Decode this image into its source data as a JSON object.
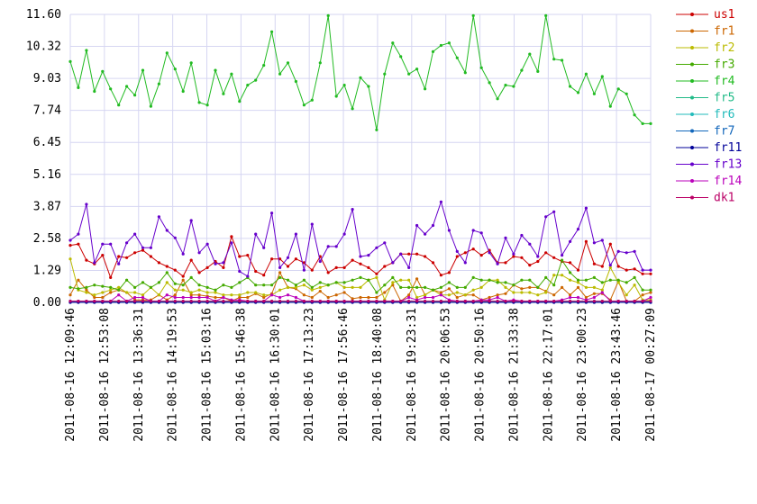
{
  "chart_data": {
    "type": "line",
    "title": "",
    "xlabel": "",
    "ylabel": "",
    "ylim": [
      0,
      11.6
    ],
    "y_ticks": [
      "0.00",
      "1.29",
      "2.58",
      "3.87",
      "5.16",
      "6.45",
      "7.74",
      "9.03",
      "10.32",
      "11.60"
    ],
    "x_tick_labels": [
      "2011-08-16 12:09:46",
      "2011-08-16 12:53:08",
      "2011-08-16 13:36:31",
      "2011-08-16 14:19:53",
      "2011-08-16 15:03:16",
      "2011-08-16 15:46:38",
      "2011-08-16 16:30:01",
      "2011-08-16 17:13:23",
      "2011-08-16 17:56:46",
      "2011-08-16 18:40:08",
      "2011-08-16 19:23:31",
      "2011-08-16 20:06:53",
      "2011-08-16 20:50:16",
      "2011-08-16 21:33:38",
      "2011-08-16 22:17:01",
      "2011-08-16 23:00:23",
      "2011-08-16 23:43:46",
      "2011-08-17 00:27:09"
    ],
    "grid": true,
    "legend_position": "right",
    "series": [
      {
        "name": "us1",
        "color": "#cc0000",
        "values": [
          2.3,
          2.35,
          1.7,
          1.55,
          1.9,
          1.0,
          1.85,
          1.8,
          2.0,
          2.1,
          1.85,
          1.6,
          1.45,
          1.3,
          1.05,
          1.7,
          1.2,
          1.4,
          1.65,
          1.4,
          2.65,
          1.85,
          1.9,
          1.25,
          1.1,
          1.75,
          1.75,
          1.45,
          1.75,
          1.6,
          1.3,
          1.85,
          1.2,
          1.4,
          1.4,
          1.7,
          1.55,
          1.4,
          1.15,
          1.45,
          1.6,
          1.95,
          1.95,
          1.95,
          1.85,
          1.6,
          1.1,
          1.2,
          1.85,
          2.0,
          2.15,
          1.9,
          2.1,
          1.6,
          1.6,
          1.85,
          1.8,
          1.5,
          1.65,
          2.0,
          1.8,
          1.65,
          1.6,
          1.3,
          2.45,
          1.55,
          1.45,
          2.35,
          1.45,
          1.3,
          1.35,
          1.15,
          1.15
        ]
      },
      {
        "name": "fr1",
        "color": "#cc6600",
        "values": [
          0.3,
          0.9,
          0.5,
          0.2,
          0.2,
          0.4,
          0.5,
          0.4,
          0.1,
          0.1,
          0.1,
          0.3,
          0.1,
          0.3,
          0.9,
          0.3,
          0.3,
          0.25,
          0.2,
          0.2,
          0.05,
          0.2,
          0.2,
          0.35,
          0.2,
          0.35,
          1.2,
          0.6,
          0.55,
          0.3,
          0.2,
          0.45,
          0.2,
          0.3,
          0.4,
          0.15,
          0.2,
          0.2,
          0.2,
          0.4,
          0.7,
          0.05,
          0.3,
          0.95,
          0.3,
          0.5,
          0.4,
          0.55,
          0.2,
          0.3,
          0.3,
          0.1,
          0.2,
          0.3,
          0.35,
          0.7,
          0.55,
          0.6,
          0.6,
          0.45,
          0.3,
          0.6,
          0.3,
          0.6,
          0.2,
          0.35,
          0.35,
          0.1,
          0.85,
          0.05,
          0.05,
          0.3,
          0.4
        ]
      },
      {
        "name": "fr2",
        "color": "#bbbb00",
        "values": [
          1.75,
          0.5,
          0.4,
          0.3,
          0.4,
          0.5,
          0.6,
          0.4,
          0.4,
          0.3,
          0.6,
          0.3,
          0.8,
          0.5,
          0.5,
          0.4,
          0.5,
          0.4,
          0.4,
          0.3,
          0.3,
          0.3,
          0.4,
          0.4,
          0.3,
          0.3,
          0.5,
          0.6,
          0.6,
          0.7,
          0.5,
          0.6,
          0.7,
          0.8,
          0.6,
          0.6,
          0.6,
          0.9,
          1.0,
          0.1,
          0.8,
          0.9,
          0.9,
          0.2,
          0.3,
          0.5,
          0.3,
          0.3,
          0.4,
          0.3,
          0.5,
          0.6,
          0.9,
          0.9,
          0.6,
          0.4,
          0.4,
          0.4,
          0.3,
          0.4,
          1.1,
          1.1,
          0.9,
          0.8,
          0.6,
          0.6,
          0.5,
          1.4,
          0.8,
          0.3,
          0.7,
          0.1,
          0.1
        ]
      },
      {
        "name": "fr3",
        "color": "#44aa00",
        "values": [
          0.6,
          0.55,
          0.6,
          0.7,
          0.65,
          0.6,
          0.5,
          0.9,
          0.6,
          0.8,
          0.6,
          0.8,
          1.2,
          0.75,
          0.7,
          1.0,
          0.7,
          0.6,
          0.5,
          0.7,
          0.6,
          0.8,
          1.0,
          0.7,
          0.7,
          0.7,
          1.0,
          0.9,
          0.7,
          0.9,
          0.6,
          0.8,
          0.7,
          0.8,
          0.8,
          0.9,
          1.0,
          0.9,
          0.4,
          0.7,
          1.0,
          0.6,
          0.6,
          0.6,
          0.6,
          0.5,
          0.6,
          0.8,
          0.6,
          0.6,
          1.0,
          0.9,
          0.9,
          0.8,
          0.8,
          0.7,
          0.9,
          0.9,
          0.6,
          1.0,
          0.7,
          1.7,
          1.2,
          0.9,
          0.9,
          1.0,
          0.8,
          0.9,
          0.9,
          0.8,
          1.0,
          0.5,
          0.5
        ]
      },
      {
        "name": "fr4",
        "color": "#22bb22",
        "values": [
          9.7,
          8.65,
          10.15,
          8.5,
          9.3,
          8.6,
          7.95,
          8.7,
          8.35,
          9.35,
          7.9,
          8.8,
          10.05,
          9.4,
          8.5,
          9.65,
          8.05,
          7.95,
          9.35,
          8.4,
          9.2,
          8.1,
          8.75,
          8.95,
          9.55,
          10.9,
          9.2,
          9.65,
          8.9,
          7.95,
          8.15,
          9.65,
          11.55,
          8.3,
          8.75,
          7.8,
          9.05,
          8.7,
          6.95,
          9.2,
          10.45,
          9.9,
          9.2,
          9.4,
          8.6,
          10.1,
          10.35,
          10.45,
          9.85,
          9.25,
          11.55,
          9.45,
          8.85,
          8.2,
          8.75,
          8.7,
          9.35,
          10.0,
          9.3,
          11.55,
          9.8,
          9.75,
          8.7,
          8.45,
          9.2,
          8.4,
          9.1,
          7.9,
          8.6,
          8.4,
          7.55,
          7.2,
          7.2
        ]
      },
      {
        "name": "fr5",
        "color": "#22bb88",
        "values": [
          0.05,
          0.05,
          0.05,
          0.05,
          0.05,
          0.05,
          0.05,
          0.05,
          0.05,
          0.05,
          0.05,
          0.05,
          0.05,
          0.05,
          0.05,
          0.05,
          0.05,
          0.05,
          0.05,
          0.05,
          0.05,
          0.05,
          0.05,
          0.05,
          0.05,
          0.05,
          0.05,
          0.05,
          0.05,
          0.05,
          0.05,
          0.05,
          0.05,
          0.05,
          0.05,
          0.05,
          0.05,
          0.05,
          0.05,
          0.05,
          0.05,
          0.05,
          0.05,
          0.05,
          0.05,
          0.05,
          0.05,
          0.05,
          0.05,
          0.05,
          0.05,
          0.05,
          0.05,
          0.05,
          0.05,
          0.05,
          0.05,
          0.05,
          0.05,
          0.05,
          0.05,
          0.05,
          0.05,
          0.05,
          0.05,
          0.05,
          0.05,
          0.05,
          0.05,
          0.05,
          0.05,
          0.05,
          0.05
        ]
      },
      {
        "name": "fr6",
        "color": "#22bbbb",
        "values": [
          0.02,
          0.02,
          0.02,
          0.02,
          0.02,
          0.02,
          0.02,
          0.02,
          0.02,
          0.02,
          0.02,
          0.02,
          0.02,
          0.02,
          0.02,
          0.02,
          0.02,
          0.02,
          0.02,
          0.02,
          0.02,
          0.02,
          0.02,
          0.02,
          0.02,
          0.02,
          0.02,
          0.02,
          0.02,
          0.02,
          0.02,
          0.02,
          0.02,
          0.02,
          0.02,
          0.02,
          0.02,
          0.02,
          0.02,
          0.02,
          0.02,
          0.02,
          0.02,
          0.02,
          0.02,
          0.02,
          0.02,
          0.02,
          0.02,
          0.02,
          0.02,
          0.02,
          0.02,
          0.02,
          0.02,
          0.02,
          0.02,
          0.02,
          0.02,
          0.02,
          0.02,
          0.02,
          0.02,
          0.02,
          0.02,
          0.02,
          0.02,
          0.02,
          0.02,
          0.02,
          0.02,
          0.02,
          0.02
        ]
      },
      {
        "name": "fr7",
        "color": "#1166bb",
        "values": [
          0,
          0,
          0,
          0,
          0,
          0,
          0,
          0,
          0,
          0,
          0,
          0,
          0,
          0,
          0,
          0,
          0,
          0,
          0,
          0,
          0,
          0,
          0,
          0,
          0,
          0,
          0,
          0,
          0,
          0,
          0,
          0,
          0,
          0,
          0,
          0,
          0,
          0,
          0,
          0,
          0,
          0,
          0,
          0,
          0,
          0,
          0,
          0,
          0,
          0,
          0,
          0,
          0,
          0,
          0,
          0,
          0,
          0,
          0,
          0,
          0,
          0,
          0,
          0,
          0,
          0,
          0,
          0,
          0,
          0,
          0,
          0,
          0
        ]
      },
      {
        "name": "fr11",
        "color": "#000099",
        "values": [
          0,
          0,
          0,
          0,
          0,
          0,
          0,
          0,
          0,
          0,
          0,
          0,
          0,
          0,
          0,
          0,
          0,
          0,
          0,
          0,
          0,
          0,
          0,
          0,
          0,
          0,
          0,
          0,
          0,
          0,
          0,
          0,
          0,
          0,
          0,
          0,
          0,
          0,
          0,
          0,
          0,
          0,
          0,
          0,
          0,
          0,
          0,
          0,
          0,
          0,
          0,
          0,
          0,
          0,
          0,
          0,
          0,
          0,
          0,
          0,
          0,
          0,
          0,
          0,
          0,
          0,
          0,
          0,
          0,
          0,
          0,
          0,
          0
        ]
      },
      {
        "name": "fr13",
        "color": "#6600cc",
        "values": [
          2.5,
          2.75,
          3.95,
          1.6,
          2.35,
          2.35,
          1.55,
          2.4,
          2.75,
          2.2,
          2.2,
          3.45,
          2.9,
          2.6,
          1.95,
          3.3,
          2.0,
          2.35,
          1.55,
          1.6,
          2.4,
          1.25,
          1.05,
          2.75,
          2.2,
          3.6,
          1.4,
          1.8,
          2.75,
          1.3,
          3.15,
          1.65,
          2.25,
          2.25,
          2.75,
          3.75,
          1.85,
          1.9,
          2.2,
          2.4,
          1.6,
          1.95,
          1.4,
          3.1,
          2.75,
          3.1,
          4.05,
          2.9,
          2.05,
          1.6,
          2.9,
          2.8,
          2.0,
          1.55,
          2.6,
          1.95,
          2.7,
          2.35,
          1.85,
          3.45,
          3.65,
          1.9,
          2.45,
          2.95,
          3.8,
          2.4,
          2.5,
          1.5,
          2.05,
          2.0,
          2.05,
          1.3,
          1.3
        ]
      },
      {
        "name": "fr14",
        "color": "#bb00bb",
        "values": [
          0.05,
          0.05,
          0.05,
          0.05,
          0.05,
          0.05,
          0.3,
          0.05,
          0.2,
          0.2,
          0.05,
          0.05,
          0.3,
          0.2,
          0.2,
          0.2,
          0.2,
          0.2,
          0.05,
          0.2,
          0.1,
          0.1,
          0.05,
          0.05,
          0.05,
          0.3,
          0.2,
          0.3,
          0.2,
          0.05,
          0.05,
          0.05,
          0.05,
          0.05,
          0.05,
          0.05,
          0.05,
          0.05,
          0.05,
          0.05,
          0.05,
          0.05,
          0.2,
          0.1,
          0.2,
          0.2,
          0.3,
          0.1,
          0.05,
          0.05,
          0.05,
          0.1,
          0.1,
          0.2,
          0.05,
          0.1,
          0.05,
          0.05,
          0.05,
          0.05,
          0.05,
          0.1,
          0.2,
          0.2,
          0.1,
          0.2,
          0.4,
          0.05,
          0.05,
          0.05,
          0.05,
          0.05,
          0.2
        ]
      },
      {
        "name": "dk1",
        "color": "#bb0066",
        "values": [
          0.05,
          0.05,
          0.05,
          0.05,
          0.05,
          0.05,
          0.05,
          0.05,
          0.05,
          0.05,
          0.05,
          0.05,
          0.05,
          0.05,
          0.05,
          0.05,
          0.05,
          0.05,
          0.05,
          0.05,
          0.05,
          0.05,
          0.05,
          0.05,
          0.05,
          0.05,
          0.05,
          0.05,
          0.05,
          0.05,
          0.05,
          0.05,
          0.05,
          0.05,
          0.05,
          0.05,
          0.05,
          0.05,
          0.05,
          0.05,
          0.05,
          0.05,
          0.05,
          0.05,
          0.05,
          0.05,
          0.05,
          0.05,
          0.05,
          0.05,
          0.05,
          0.05,
          0.05,
          0.05,
          0.05,
          0.05,
          0.05,
          0.05,
          0.05,
          0.05,
          0.05,
          0.05,
          0.05,
          0.05,
          0.05,
          0.05,
          0.05,
          0.05,
          0.05,
          0.05,
          0.05,
          0.05,
          0.05
        ]
      }
    ]
  }
}
